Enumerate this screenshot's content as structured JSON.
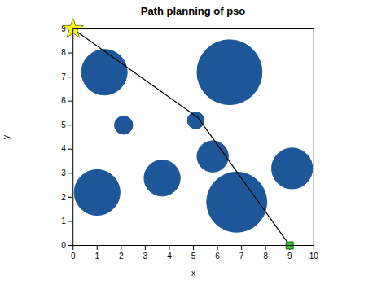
{
  "chart_data": {
    "type": "path",
    "title": "Path planning of pso",
    "xlabel": "x",
    "ylabel": "y",
    "xlim": [
      0,
      10
    ],
    "ylim": [
      0,
      9
    ],
    "xticks": [
      0,
      1,
      2,
      3,
      4,
      5,
      6,
      7,
      8,
      9,
      10
    ],
    "yticks": [
      0,
      1,
      2,
      3,
      4,
      5,
      6,
      7,
      8,
      9
    ],
    "grid": false,
    "series": [
      {
        "type": "circle",
        "color": "#1e5799",
        "cx": [
          1.3,
          2.1,
          1.0,
          3.7,
          5.1,
          6.5,
          5.8,
          6.8,
          9.1
        ],
        "cy": [
          7.2,
          5.0,
          2.2,
          2.8,
          5.2,
          7.2,
          3.7,
          1.8,
          3.2
        ],
        "r": [
          0.95,
          0.38,
          0.95,
          0.75,
          0.35,
          1.35,
          0.65,
          1.25,
          0.85
        ]
      },
      {
        "type": "line",
        "color": "black",
        "x": [
          0.0,
          5.2,
          9.0
        ],
        "y": [
          9.0,
          5.3,
          0.0
        ]
      },
      {
        "type": "marker",
        "marker": "star",
        "color": "yellow",
        "x": [
          0.0
        ],
        "y": [
          9.0
        ]
      },
      {
        "type": "marker",
        "marker": "square",
        "color": "#33cc33",
        "x": [
          9.0
        ],
        "y": [
          0.0
        ]
      }
    ]
  }
}
